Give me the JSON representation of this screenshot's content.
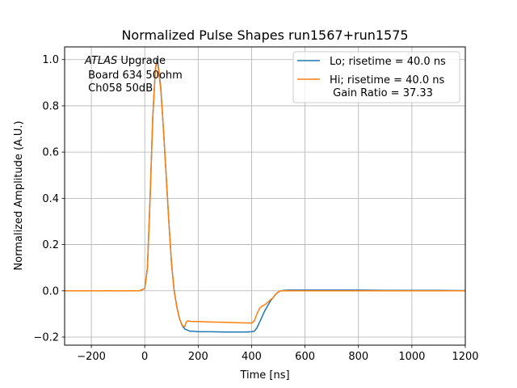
{
  "chart_data": {
    "type": "line",
    "title": "Normalized Pulse Shapes run1567+run1575",
    "xlabel": "Time [ns]",
    "ylabel": "Normalized Amplitude (A.U.)",
    "xlim": [
      -300,
      1200
    ],
    "ylim": [
      -0.235,
      1.055
    ],
    "x_ticks": [
      -200,
      0,
      200,
      400,
      600,
      800,
      1000,
      1200
    ],
    "x_tick_labels": [
      "−200",
      "0",
      "200",
      "400",
      "600",
      "800",
      "1000",
      "1200"
    ],
    "y_ticks": [
      -0.2,
      0.0,
      0.2,
      0.4,
      0.6,
      0.8,
      1.0
    ],
    "y_tick_labels": [
      "−0.2",
      "0.0",
      "0.2",
      "0.4",
      "0.6",
      "0.8",
      "1.0"
    ],
    "grid": true,
    "legend_position": "top-right",
    "annotation": {
      "atlas": "ATLAS",
      "line1_rest": " Upgrade",
      "line2": " Board 634 50ohm",
      "line3": " Ch058 50dB"
    },
    "series": [
      {
        "name": "Lo; risetime = 40.0 ns",
        "color": "#1f77b4",
        "x": [
          -300,
          -200,
          -100,
          -20,
          0,
          10,
          20,
          30,
          40,
          45,
          50,
          60,
          70,
          80,
          90,
          100,
          110,
          120,
          130,
          140,
          150,
          160,
          170,
          180,
          200,
          250,
          300,
          350,
          380,
          400,
          410,
          420,
          430,
          440,
          450,
          460,
          470,
          480,
          490,
          500,
          510,
          520,
          540,
          600,
          700,
          800,
          900,
          1000,
          1100,
          1200
        ],
        "y": [
          0.0,
          0.0,
          0.0,
          0.0,
          0.01,
          0.1,
          0.4,
          0.75,
          0.96,
          1.0,
          0.98,
          0.88,
          0.7,
          0.5,
          0.3,
          0.12,
          0.0,
          -0.07,
          -0.12,
          -0.15,
          -0.165,
          -0.17,
          -0.175,
          -0.175,
          -0.177,
          -0.177,
          -0.178,
          -0.178,
          -0.178,
          -0.177,
          -0.175,
          -0.16,
          -0.135,
          -0.11,
          -0.085,
          -0.065,
          -0.045,
          -0.03,
          -0.015,
          -0.005,
          0.0,
          0.002,
          0.003,
          0.003,
          0.003,
          0.003,
          0.002,
          0.002,
          0.002,
          0.001
        ]
      },
      {
        "name": "Hi; risetime = 40.0 ns\n Gain Ratio = 37.33",
        "color": "#ff7f0e",
        "x": [
          -300,
          -200,
          -100,
          -20,
          0,
          10,
          20,
          30,
          40,
          45,
          50,
          60,
          70,
          80,
          90,
          100,
          110,
          120,
          130,
          140,
          150,
          155,
          160,
          170,
          180,
          200,
          250,
          300,
          350,
          380,
          400,
          410,
          420,
          430,
          440,
          450,
          460,
          470,
          480,
          490,
          500,
          510,
          520,
          540,
          600,
          700,
          800,
          900,
          1000,
          1100,
          1200
        ],
        "y": [
          0.0,
          0.0,
          0.0,
          0.0,
          0.01,
          0.1,
          0.4,
          0.75,
          0.96,
          0.99,
          0.97,
          0.87,
          0.7,
          0.5,
          0.3,
          0.12,
          0.0,
          -0.07,
          -0.12,
          -0.15,
          -0.155,
          -0.135,
          -0.13,
          -0.132,
          -0.133,
          -0.133,
          -0.135,
          -0.136,
          -0.138,
          -0.139,
          -0.14,
          -0.13,
          -0.1,
          -0.075,
          -0.065,
          -0.06,
          -0.05,
          -0.04,
          -0.03,
          -0.015,
          -0.005,
          0.0,
          0.0,
          0.0,
          0.0,
          0.0,
          0.0,
          0.0,
          0.0,
          0.0,
          0.0
        ]
      }
    ]
  }
}
